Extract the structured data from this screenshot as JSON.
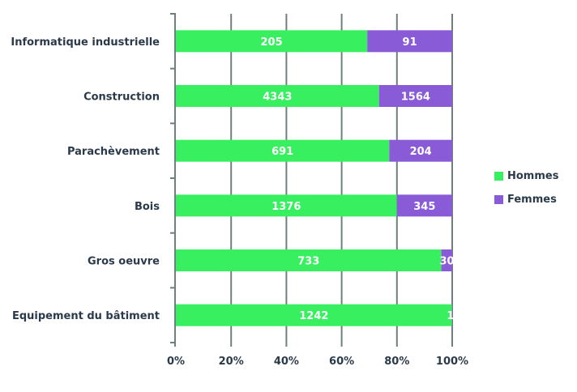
{
  "chart_data": {
    "type": "bar",
    "orientation": "horizontal",
    "stacking": "percent",
    "categories": [
      "Informatique industrielle",
      "Construction",
      "Parachèvement",
      "Bois",
      "Gros oeuvre",
      "Equipement du bâtiment"
    ],
    "series": [
      {
        "name": "Hommes",
        "color": "#38f05f",
        "values": [
          205,
          4343,
          691,
          1376,
          733,
          1242
        ]
      },
      {
        "name": "Femmes",
        "color": "#8a5bd6",
        "values": [
          91,
          1564,
          204,
          345,
          30,
          1
        ]
      }
    ],
    "xticks": [
      "0%",
      "20%",
      "40%",
      "60%",
      "80%",
      "100%"
    ],
    "xlim": [
      0,
      100
    ],
    "grid": true,
    "legend_position": "right"
  }
}
